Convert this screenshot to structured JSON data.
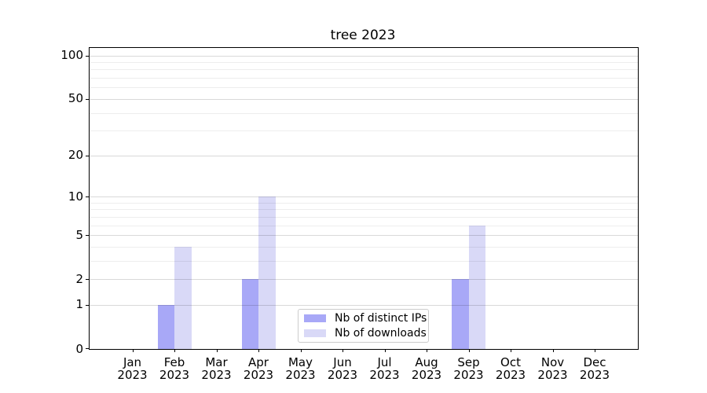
{
  "chart_data": {
    "type": "bar",
    "title": "tree 2023",
    "categories": [
      "Jan",
      "Feb",
      "Mar",
      "Apr",
      "May",
      "Jun",
      "Jul",
      "Aug",
      "Sep",
      "Oct",
      "Nov",
      "Dec"
    ],
    "category_year": "2023",
    "series": [
      {
        "name": "Nb of distinct IPs",
        "color": "#a8a8f7",
        "values": [
          0,
          1,
          0,
          2,
          0,
          0,
          0,
          0,
          2,
          0,
          0,
          0
        ]
      },
      {
        "name": "Nb of downloads",
        "color": "#d9d9f7",
        "values": [
          0,
          4,
          0,
          10,
          0,
          0,
          0,
          0,
          6,
          0,
          0,
          0
        ]
      }
    ],
    "xlabel": "",
    "ylabel": "",
    "yscale": "log(1+x)",
    "yticks": [
      0,
      1,
      2,
      5,
      10,
      20,
      50,
      100
    ],
    "yticks_minor": [
      3,
      4,
      6,
      7,
      8,
      9,
      30,
      40,
      60,
      70,
      80,
      90
    ],
    "ylim": [
      0,
      113
    ],
    "grid": true,
    "legend_position": "lower center"
  }
}
